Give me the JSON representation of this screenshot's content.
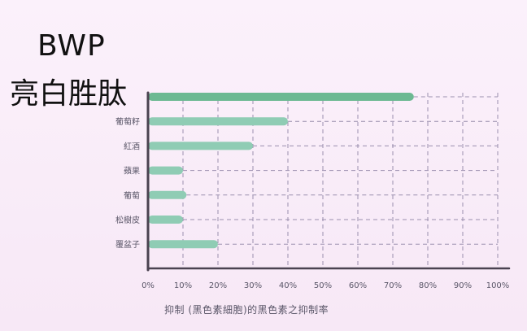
{
  "chart_data": {
    "type": "bar",
    "orientation": "horizontal",
    "title_line1": "BWP",
    "title_line2": "亮白胜肽",
    "xlabel": "抑制 (黑色素細胞)的黑色素之抑制率",
    "x_ticks": [
      "0%",
      "10%",
      "20%",
      "30%",
      "40%",
      "50%",
      "60%",
      "70%",
      "80%",
      "90%",
      "100%"
    ],
    "xlim": [
      0,
      100
    ],
    "grid": "dashed",
    "categories": [
      "BWP 亮白胜肽",
      "葡萄籽",
      "紅酒",
      "蘋果",
      "葡萄",
      "松樹皮",
      "覆盆子"
    ],
    "category_labels": [
      "",
      "葡萄籽",
      "紅酒",
      "蘋果",
      "葡萄",
      "松樹皮",
      "覆盆子"
    ],
    "values": [
      76,
      40,
      30,
      10,
      11,
      10,
      20
    ],
    "colors": {
      "highlight": "#6cb992",
      "bar": "#8fccb4",
      "axis": "#4a4250",
      "grid": "#9a8fae",
      "label": "#5a5668"
    }
  }
}
